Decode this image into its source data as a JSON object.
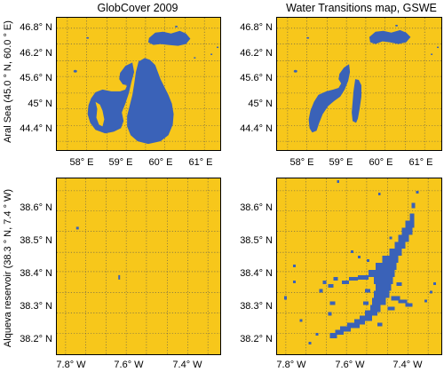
{
  "column_titles": [
    "GlobCover 2009",
    "Water Transitions map, GSWE"
  ],
  "row_labels": [
    "Aral Sea (45.0 ° N, 60.0 ° E)",
    "Alqueva reservoir (38.3 ° N, 7.4 ° W)"
  ],
  "aral": {
    "y_ticks": [
      "46.8° N",
      "46.2° N",
      "45.6° N",
      "45° N",
      "44.4° N"
    ],
    "x_ticks": [
      "58° E",
      "59° E",
      "60° E",
      "61° E"
    ]
  },
  "alqueva": {
    "y_ticks": [
      "38.6° N",
      "38.5° N",
      "38.4° N",
      "38.3° N",
      "38.2° N"
    ],
    "x_ticks": [
      "7.8° W",
      "7.6° W",
      "7.4° W"
    ]
  },
  "colors": {
    "land": "#f7c71b",
    "water": "#3a62b8",
    "grid": "#555555"
  },
  "chart_data": {
    "type": "map",
    "legend": "none",
    "grid": "dotted",
    "classes": [
      "water",
      "land"
    ]
  }
}
